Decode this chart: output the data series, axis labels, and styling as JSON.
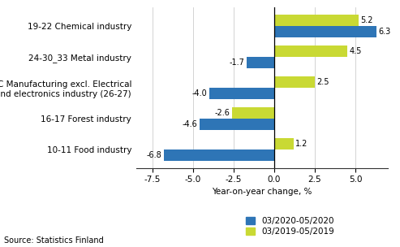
{
  "categories": [
    "19-22 Chemical industry",
    "24-30_33 Metal industry",
    "C Manufacturing excl. Electrical\nand electronics industry (26-27)",
    "16-17 Forest industry",
    "10-11 Food industry"
  ],
  "series": {
    "03/2020-05/2020": [
      6.3,
      -1.7,
      -4.0,
      -4.6,
      -6.8
    ],
    "03/2019-05/2019": [
      5.2,
      4.5,
      2.5,
      -2.6,
      1.2
    ]
  },
  "colors": {
    "03/2020-05/2020": "#2E75B6",
    "03/2019-05/2019": "#C9D934"
  },
  "xlabel": "Year-on-year change, %",
  "xlim": [
    -8.5,
    7.0
  ],
  "xticks": [
    -7.5,
    -5.0,
    -2.5,
    0.0,
    2.5,
    5.0
  ],
  "xtick_labels": [
    "-7.5",
    "-5.0",
    "-2.5",
    "0.0",
    "2.5",
    "5.0"
  ],
  "source": "Source: Statistics Finland",
  "bar_height": 0.36,
  "label_fontsize": 7.0,
  "axis_fontsize": 7.5,
  "legend_fontsize": 7.5
}
